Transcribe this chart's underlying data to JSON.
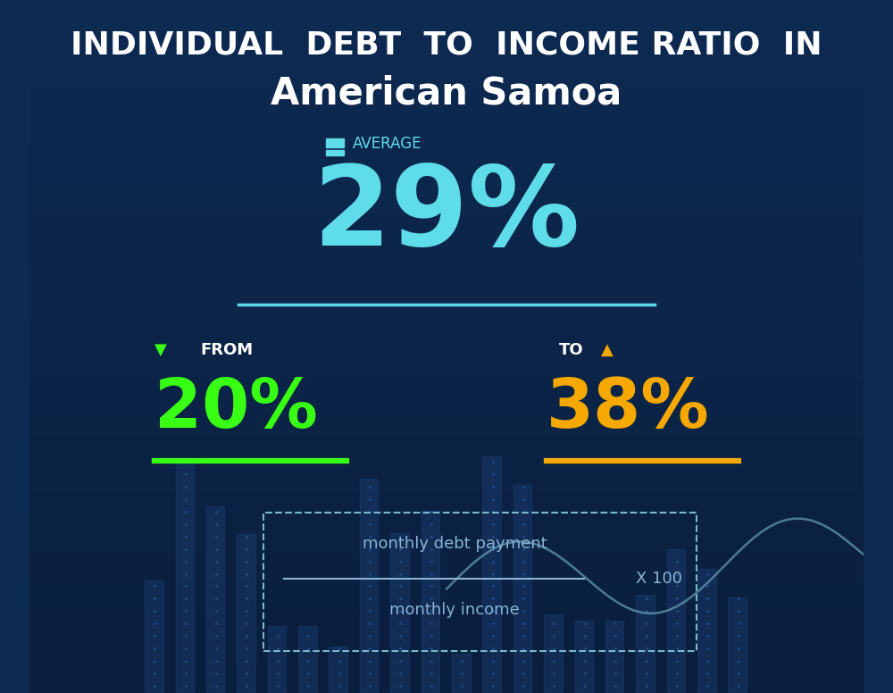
{
  "title_line1": "INDIVIDUAL  DEBT  TO  INCOME RATIO  IN",
  "title_line2": "American Samoa",
  "avg_label": "AVERAGE",
  "avg_value": "29%",
  "from_label": "FROM",
  "from_value": "20%",
  "to_label": "TO",
  "to_value": "38%",
  "formula_top": "monthly debt payment",
  "formula_bottom": "monthly income",
  "formula_multiplier": "X 100",
  "bg_color_top": "#0d2a52",
  "bg_color_bottom": "#0a1e3d",
  "avg_color": "#5edce8",
  "from_color": "#39ff14",
  "to_color": "#f5a800",
  "title_color": "#ffffff",
  "label_color": "#8ab4d4",
  "formula_color": "#8ab4d4",
  "avg_line_color": "#5edce8",
  "from_line_color": "#39ff14",
  "to_line_color": "#f5a800"
}
